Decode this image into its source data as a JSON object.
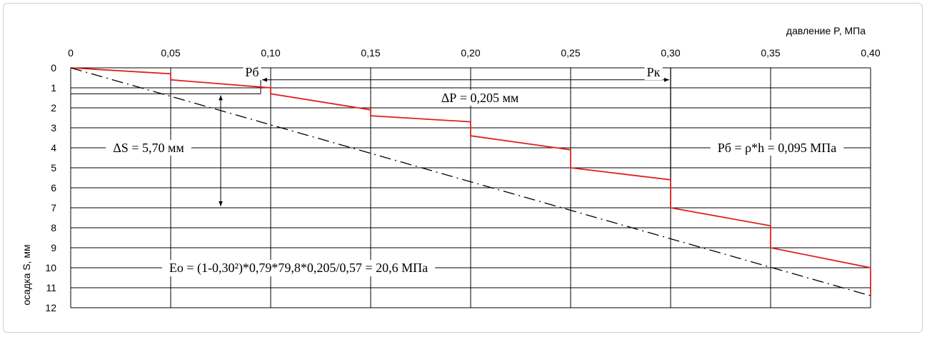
{
  "chart_data": {
    "type": "line",
    "xlabel": "давление P, МПа",
    "ylabel": "осадка S, мм",
    "xlim": [
      0,
      0.4
    ],
    "ylim": [
      0,
      12
    ],
    "x_ticks": [
      "0",
      "0,05",
      "0,10",
      "0,15",
      "0,20",
      "0,25",
      "0,30",
      "0,35",
      "0,40"
    ],
    "x_tick_values": [
      0,
      0.05,
      0.1,
      0.15,
      0.2,
      0.25,
      0.3,
      0.35,
      0.4
    ],
    "y_ticks": [
      "0",
      "1",
      "2",
      "3",
      "4",
      "5",
      "6",
      "7",
      "8",
      "9",
      "10",
      "11",
      "12"
    ],
    "y_tick_values": [
      0,
      1,
      2,
      3,
      4,
      5,
      6,
      7,
      8,
      9,
      10,
      11,
      12
    ],
    "grid": "horizontal",
    "series": [
      {
        "style": "solid",
        "color": "#e02020",
        "x": [
          0,
          0.05,
          0.05,
          0.1,
          0.1,
          0.15,
          0.15,
          0.2,
          0.2,
          0.25,
          0.25,
          0.3,
          0.3,
          0.35,
          0.35,
          0.4,
          0.4
        ],
        "y": [
          0,
          0.3,
          0.6,
          1.0,
          1.3,
          2.1,
          2.4,
          2.7,
          3.4,
          4.1,
          5.0,
          5.6,
          7.0,
          7.9,
          9.0,
          10.0,
          11.4
        ]
      },
      {
        "style": "dash-dot",
        "color": "#000000",
        "x": [
          0,
          0.4
        ],
        "y": [
          0,
          11.4
        ]
      }
    ],
    "reference_lines": {
      "pb_x": 0.095,
      "pk_x": 0.3,
      "s_low": 1.3,
      "s_high": 7.0
    },
    "annotations": {
      "pb_label": "Рб",
      "pk_label": "Рк",
      "delta_p": "ΔР = 0,205 мм",
      "delta_s": "ΔS = 5,70 мм",
      "pb_formula": "Рб = ρ*h = 0,095 МПа",
      "eo_formula": "Eo = (1-0,30²)*0,79*79,8*0,205/0,57 = 20,6 МПа"
    }
  }
}
